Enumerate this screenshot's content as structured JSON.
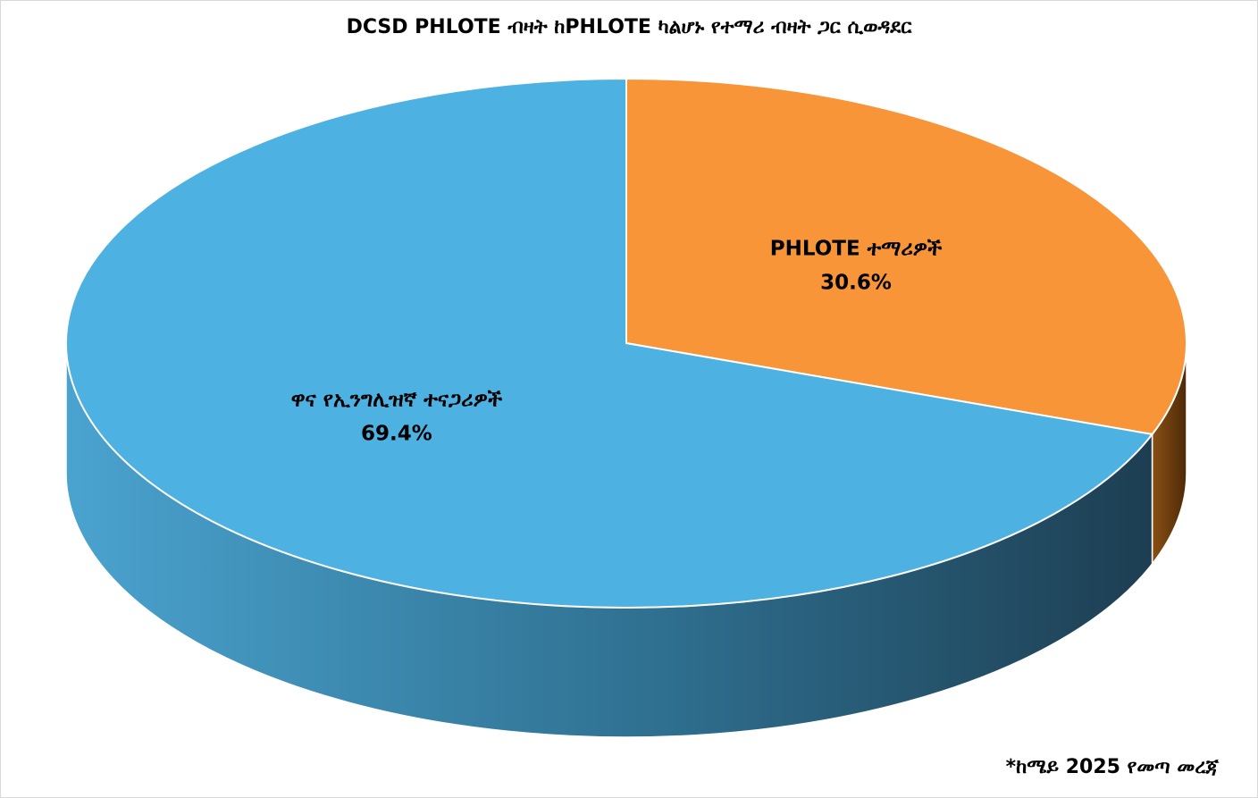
{
  "chart_data": {
    "type": "pie",
    "title": "DCSD PHLOTE ብዛት ከPHLOTE ካልሆኑ የተማሪ ብዛት ጋር ሲወዳደር",
    "slices": [
      {
        "label": "PHLOTE ተማሪዎች",
        "value": 30.6,
        "value_label": "30.6%",
        "color": "#f79538",
        "side_color": "#7a4510"
      },
      {
        "label": "ዋና የኢንግሊዝኛ ተናጋሪዎች",
        "value": 69.4,
        "value_label": "69.4%",
        "color": "#4db1e1",
        "side_color": "#3d8bb3"
      }
    ],
    "footnote": "*ከሜይ 2025 የመጣ መረጃ",
    "legend": "none",
    "style": "3d"
  }
}
